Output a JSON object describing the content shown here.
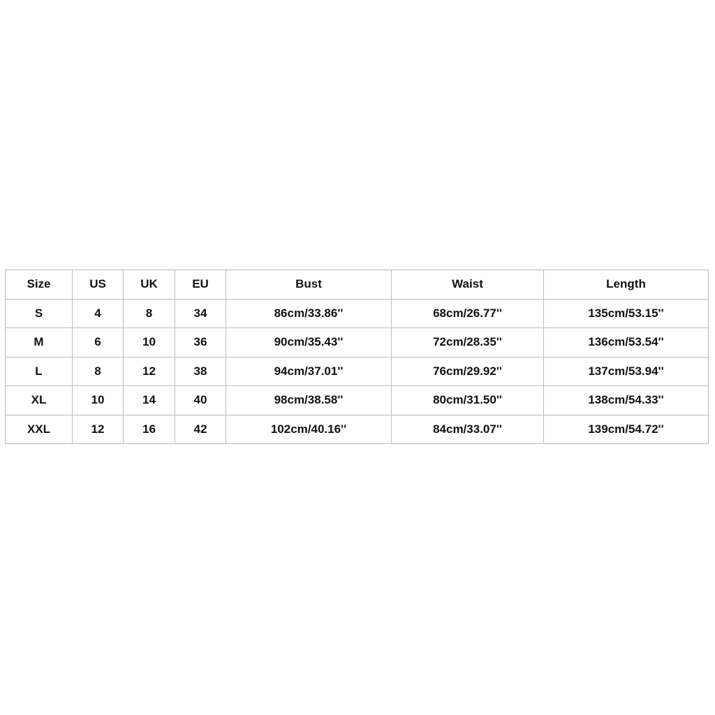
{
  "table": {
    "header": [
      "Size",
      "US",
      "UK",
      "EU",
      "Bust",
      "Waist",
      "Length"
    ],
    "rows": [
      [
        "S",
        "4",
        "8",
        "34",
        "86cm/33.86''",
        "68cm/26.77''",
        "135cm/53.15''"
      ],
      [
        "M",
        "6",
        "10",
        "36",
        "90cm/35.43''",
        "72cm/28.35''",
        "136cm/53.54''"
      ],
      [
        "L",
        "8",
        "12",
        "38",
        "94cm/37.01''",
        "76cm/29.92''",
        "137cm/53.94''"
      ],
      [
        "XL",
        "10",
        "14",
        "40",
        "98cm/38.58''",
        "80cm/31.50''",
        "138cm/54.33''"
      ],
      [
        "XXL",
        "12",
        "16",
        "42",
        "102cm/40.16''",
        "84cm/33.07''",
        "139cm/54.72''"
      ]
    ]
  }
}
